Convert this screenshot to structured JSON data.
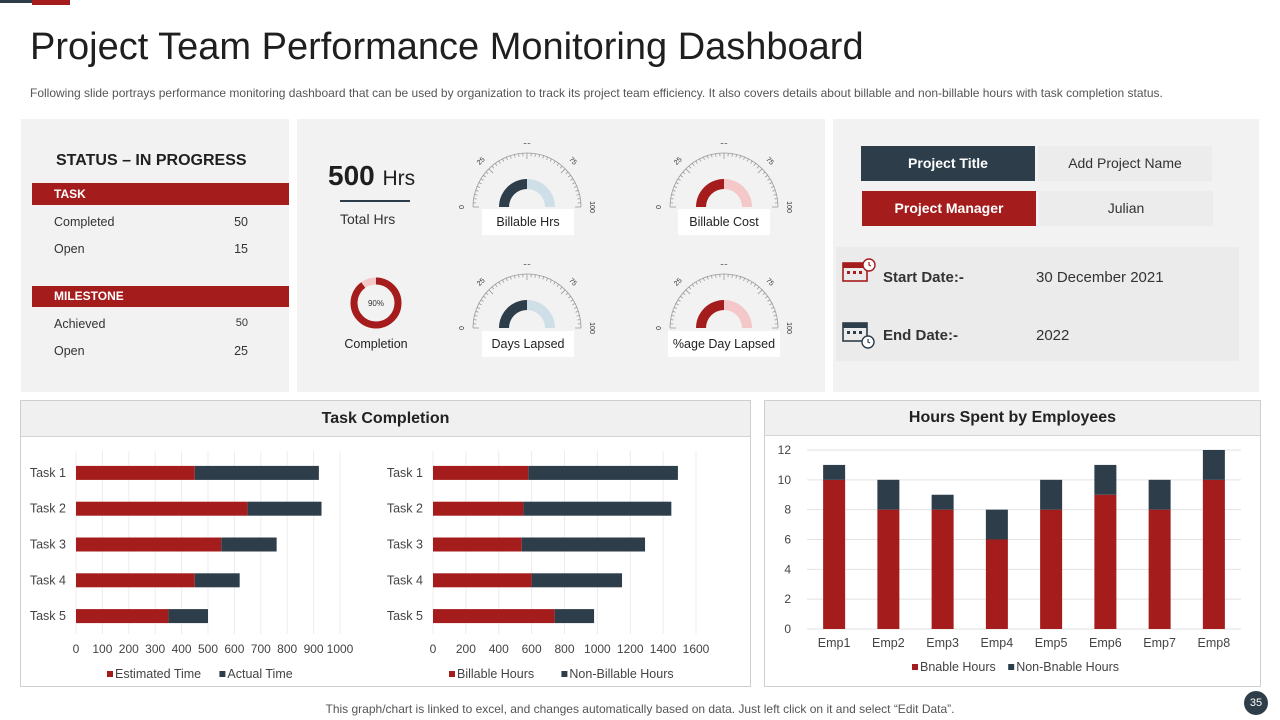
{
  "page": {
    "title": "Project Team Performance Monitoring Dashboard",
    "subtitle": "Following slide portrays performance monitoring dashboard that can be used by organization to track its project team efficiency. It also covers details about billable and non-billable hours with task completion status.",
    "footer": "This graph/chart is linked to excel, and changes automatically based on data. Just left click on it and select “Edit Data”.",
    "page_number": "35"
  },
  "colors": {
    "red": "#a51c1c",
    "navy": "#2d3e4a",
    "light_blue": "#cfdfe8",
    "light_red": "#f4c8c8",
    "panel": "#f2f2f2"
  },
  "status": {
    "heading": "STATUS – IN PROGRESS",
    "task": {
      "label": "TASK",
      "rows": [
        {
          "label": "Completed",
          "value": "50"
        },
        {
          "label": "Open",
          "value": "15"
        }
      ]
    },
    "milestone": {
      "label": "MILESTONE",
      "rows": [
        {
          "label": "Achieved",
          "value": "50"
        },
        {
          "label": "Open",
          "value": "25"
        }
      ]
    }
  },
  "kpis": {
    "total_hours_value": "500",
    "total_hours_unit": "Hrs",
    "total_hours_label": "Total Hrs",
    "completion_percent_text": "90%",
    "completion_fraction": 0.9,
    "completion_label": "Completion"
  },
  "gauges": {
    "ticks": [
      "0",
      "25",
      "50",
      "75",
      "100"
    ],
    "items": [
      {
        "label": "Billable Hrs",
        "value": 50,
        "fill_color": "#2d3e4a",
        "rest_color": "#cfdfe8"
      },
      {
        "label": "Billable Cost",
        "value": 50,
        "fill_color": "#a51c1c",
        "rest_color": "#f4c8c8"
      },
      {
        "label": "Days Lapsed",
        "value": 50,
        "fill_color": "#2d3e4a",
        "rest_color": "#cfdfe8"
      },
      {
        "label": "%age Day Lapsed",
        "value": 50,
        "fill_color": "#a51c1c",
        "rest_color": "#f4c8c8"
      }
    ]
  },
  "project": {
    "title_label": "Project Title",
    "title_value": "Add Project Name",
    "manager_label": "Project Manager",
    "manager_value": "Julian",
    "start_label": "Start Date:-",
    "start_value": "30 December 2021",
    "end_label": "End Date:-",
    "end_value": "2022"
  },
  "chart_titles": {
    "task_completion": "Task Completion",
    "hours_spent": "Hours Spent by Employees"
  },
  "chart_data": [
    {
      "type": "bar",
      "orientation": "horizontal",
      "stacked": true,
      "categories": [
        "Task 1",
        "Task 2",
        "Task 3",
        "Task 4",
        "Task 5"
      ],
      "series": [
        {
          "name": "Estimated Time",
          "values": [
            450,
            650,
            550,
            450,
            350
          ]
        },
        {
          "name": "Actual Time",
          "values": [
            470,
            280,
            210,
            170,
            150
          ]
        }
      ],
      "xlim": [
        0,
        1000
      ],
      "xticks": [
        0,
        100,
        200,
        300,
        400,
        500,
        600,
        700,
        800,
        900,
        1000
      ],
      "legend": "bottom"
    },
    {
      "type": "bar",
      "orientation": "horizontal",
      "stacked": true,
      "categories": [
        "Task 1",
        "Task 2",
        "Task 3",
        "Task 4",
        "Task 5"
      ],
      "series": [
        {
          "name": "Billable Hours",
          "values": [
            580,
            550,
            540,
            600,
            740
          ]
        },
        {
          "name": "Non-Billable Hours",
          "values": [
            910,
            900,
            750,
            550,
            240
          ]
        }
      ],
      "xlim": [
        0,
        1600
      ],
      "xticks": [
        0,
        200,
        400,
        600,
        800,
        1000,
        1200,
        1400,
        1600
      ],
      "legend": "bottom"
    },
    {
      "type": "bar",
      "stacked": true,
      "title": "Hours Spent by Employees",
      "categories": [
        "Emp1",
        "Emp2",
        "Emp3",
        "Emp4",
        "Emp5",
        "Emp6",
        "Emp7",
        "Emp8"
      ],
      "series": [
        {
          "name": "Bnable Hours",
          "values": [
            10,
            8,
            8,
            6,
            8,
            9,
            8,
            10
          ]
        },
        {
          "name": "Non-Bnable Hours",
          "values": [
            1,
            2,
            1,
            2,
            2,
            2,
            2,
            2
          ]
        }
      ],
      "ylim": [
        0,
        12
      ],
      "yticks": [
        0,
        2,
        4,
        6,
        8,
        10,
        12
      ],
      "grid": true,
      "legend": "bottom"
    }
  ]
}
